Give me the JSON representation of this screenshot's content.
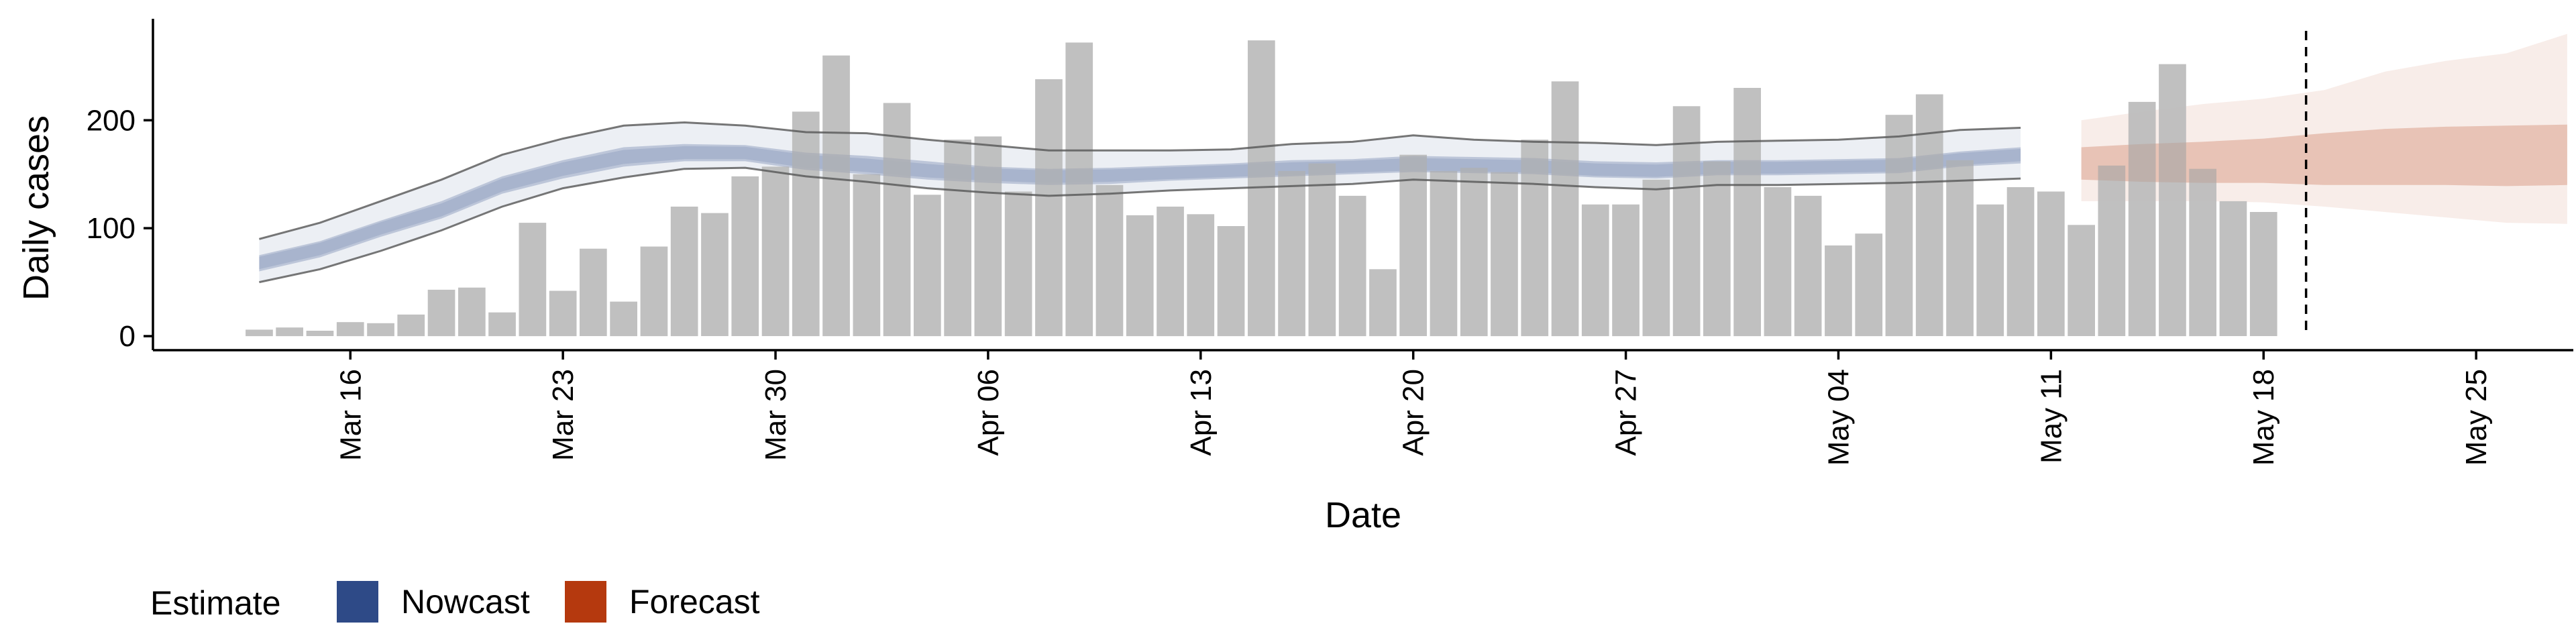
{
  "chart_data": {
    "type": "bar",
    "xlabel": "Date",
    "ylabel": "Daily cases",
    "x_tick_labels": [
      "Mar 16",
      "Mar 23",
      "Mar 30",
      "Apr 06",
      "Apr 13",
      "Apr 20",
      "Apr 27",
      "May 04",
      "May 11",
      "May 18",
      "May 25"
    ],
    "y_ticks": [
      0,
      100,
      200
    ],
    "ylim": [
      -13,
      294
    ],
    "x_start_date": "2020-03-13",
    "x_range_days": [
      -3.5,
      76.2
    ],
    "dashed_line_day": 67.4,
    "bar_color": "#bdbdbd",
    "nowcast_color": "#2E4A87",
    "forecast_color": "#B5390E",
    "bars": [
      {
        "day": 0,
        "value": 6
      },
      {
        "day": 1,
        "value": 8
      },
      {
        "day": 2,
        "value": 5
      },
      {
        "day": 3,
        "value": 13
      },
      {
        "day": 4,
        "value": 12
      },
      {
        "day": 5,
        "value": 20
      },
      {
        "day": 6,
        "value": 43
      },
      {
        "day": 7,
        "value": 45
      },
      {
        "day": 8,
        "value": 22
      },
      {
        "day": 9,
        "value": 105
      },
      {
        "day": 10,
        "value": 42
      },
      {
        "day": 11,
        "value": 81
      },
      {
        "day": 12,
        "value": 32
      },
      {
        "day": 13,
        "value": 83
      },
      {
        "day": 14,
        "value": 120
      },
      {
        "day": 15,
        "value": 114
      },
      {
        "day": 16,
        "value": 148
      },
      {
        "day": 17,
        "value": 157
      },
      {
        "day": 18,
        "value": 208
      },
      {
        "day": 19,
        "value": 260
      },
      {
        "day": 20,
        "value": 150
      },
      {
        "day": 21,
        "value": 216
      },
      {
        "day": 22,
        "value": 131
      },
      {
        "day": 23,
        "value": 182
      },
      {
        "day": 24,
        "value": 185
      },
      {
        "day": 25,
        "value": 134
      },
      {
        "day": 26,
        "value": 238
      },
      {
        "day": 27,
        "value": 272
      },
      {
        "day": 28,
        "value": 140
      },
      {
        "day": 29,
        "value": 112
      },
      {
        "day": 30,
        "value": 120
      },
      {
        "day": 31,
        "value": 113
      },
      {
        "day": 32,
        "value": 102
      },
      {
        "day": 33,
        "value": 274
      },
      {
        "day": 34,
        "value": 153
      },
      {
        "day": 35,
        "value": 160
      },
      {
        "day": 36,
        "value": 130
      },
      {
        "day": 37,
        "value": 62
      },
      {
        "day": 38,
        "value": 168
      },
      {
        "day": 39,
        "value": 153
      },
      {
        "day": 40,
        "value": 156
      },
      {
        "day": 41,
        "value": 152
      },
      {
        "day": 42,
        "value": 182
      },
      {
        "day": 43,
        "value": 236
      },
      {
        "day": 44,
        "value": 122
      },
      {
        "day": 45,
        "value": 122
      },
      {
        "day": 46,
        "value": 145
      },
      {
        "day": 47,
        "value": 213
      },
      {
        "day": 48,
        "value": 162
      },
      {
        "day": 49,
        "value": 230
      },
      {
        "day": 50,
        "value": 138
      },
      {
        "day": 51,
        "value": 130
      },
      {
        "day": 52,
        "value": 84
      },
      {
        "day": 53,
        "value": 95
      },
      {
        "day": 54,
        "value": 205
      },
      {
        "day": 55,
        "value": 224
      },
      {
        "day": 56,
        "value": 163
      },
      {
        "day": 57,
        "value": 122
      },
      {
        "day": 58,
        "value": 138
      },
      {
        "day": 59,
        "value": 134
      },
      {
        "day": 60,
        "value": 103
      },
      {
        "day": 61,
        "value": 158
      },
      {
        "day": 62,
        "value": 217
      },
      {
        "day": 63,
        "value": 252
      },
      {
        "day": 64,
        "value": 155
      },
      {
        "day": 65,
        "value": 125
      },
      {
        "day": 66,
        "value": 115
      }
    ],
    "nowcast": {
      "days": [
        0,
        2,
        4,
        6,
        8,
        10,
        12,
        14,
        16,
        18,
        20,
        22,
        24,
        26,
        28,
        30,
        32,
        34,
        36,
        38,
        40,
        42,
        44,
        46,
        48,
        50,
        52,
        54,
        56,
        58
      ],
      "outer_upper": [
        90,
        105,
        125,
        145,
        168,
        183,
        195,
        198,
        195,
        189,
        188,
        182,
        177,
        172,
        172,
        172,
        173,
        178,
        180,
        186,
        182,
        180,
        179,
        177,
        180,
        181,
        182,
        185,
        191,
        193
      ],
      "inner_upper": [
        75,
        88,
        107,
        125,
        148,
        163,
        175,
        178,
        177,
        170,
        167,
        162,
        157,
        155,
        156,
        158,
        160,
        163,
        164,
        167,
        166,
        165,
        162,
        161,
        163,
        163,
        164,
        165,
        171,
        175
      ],
      "median": [
        68,
        81,
        100,
        117,
        140,
        155,
        166,
        170,
        170,
        162,
        158,
        153,
        150,
        148,
        149,
        151,
        153,
        155,
        157,
        159,
        158,
        157,
        154,
        153,
        156,
        156,
        157,
        158,
        164,
        168
      ],
      "inner_lower": [
        60,
        73,
        92,
        109,
        132,
        146,
        157,
        162,
        162,
        154,
        150,
        145,
        142,
        140,
        141,
        144,
        146,
        148,
        150,
        152,
        151,
        150,
        147,
        146,
        149,
        149,
        150,
        151,
        157,
        160
      ],
      "outer_lower": [
        50,
        62,
        79,
        98,
        120,
        137,
        147,
        155,
        156,
        148,
        143,
        137,
        133,
        130,
        132,
        135,
        137,
        139,
        141,
        145,
        143,
        141,
        138,
        136,
        140,
        140,
        141,
        142,
        144,
        146
      ]
    },
    "forecast": {
      "days": [
        60,
        62,
        64,
        66,
        68,
        70,
        72,
        74,
        76
      ],
      "outer_upper": [
        200,
        208,
        215,
        220,
        228,
        245,
        255,
        262,
        280
      ],
      "inner_upper": [
        175,
        178,
        180,
        183,
        188,
        192,
        194,
        195,
        196
      ],
      "median": [
        165,
        168,
        170,
        172,
        173,
        175,
        176,
        176,
        175
      ],
      "inner_lower": [
        145,
        143,
        142,
        142,
        140,
        140,
        140,
        139,
        140
      ],
      "outer_lower": [
        125,
        125,
        125,
        124,
        120,
        115,
        110,
        105,
        104
      ]
    },
    "legend": {
      "title": "Estimate",
      "items": [
        {
          "label": "Nowcast",
          "color": "#2E4A87"
        },
        {
          "label": "Forecast",
          "color": "#B5390E"
        }
      ]
    }
  }
}
